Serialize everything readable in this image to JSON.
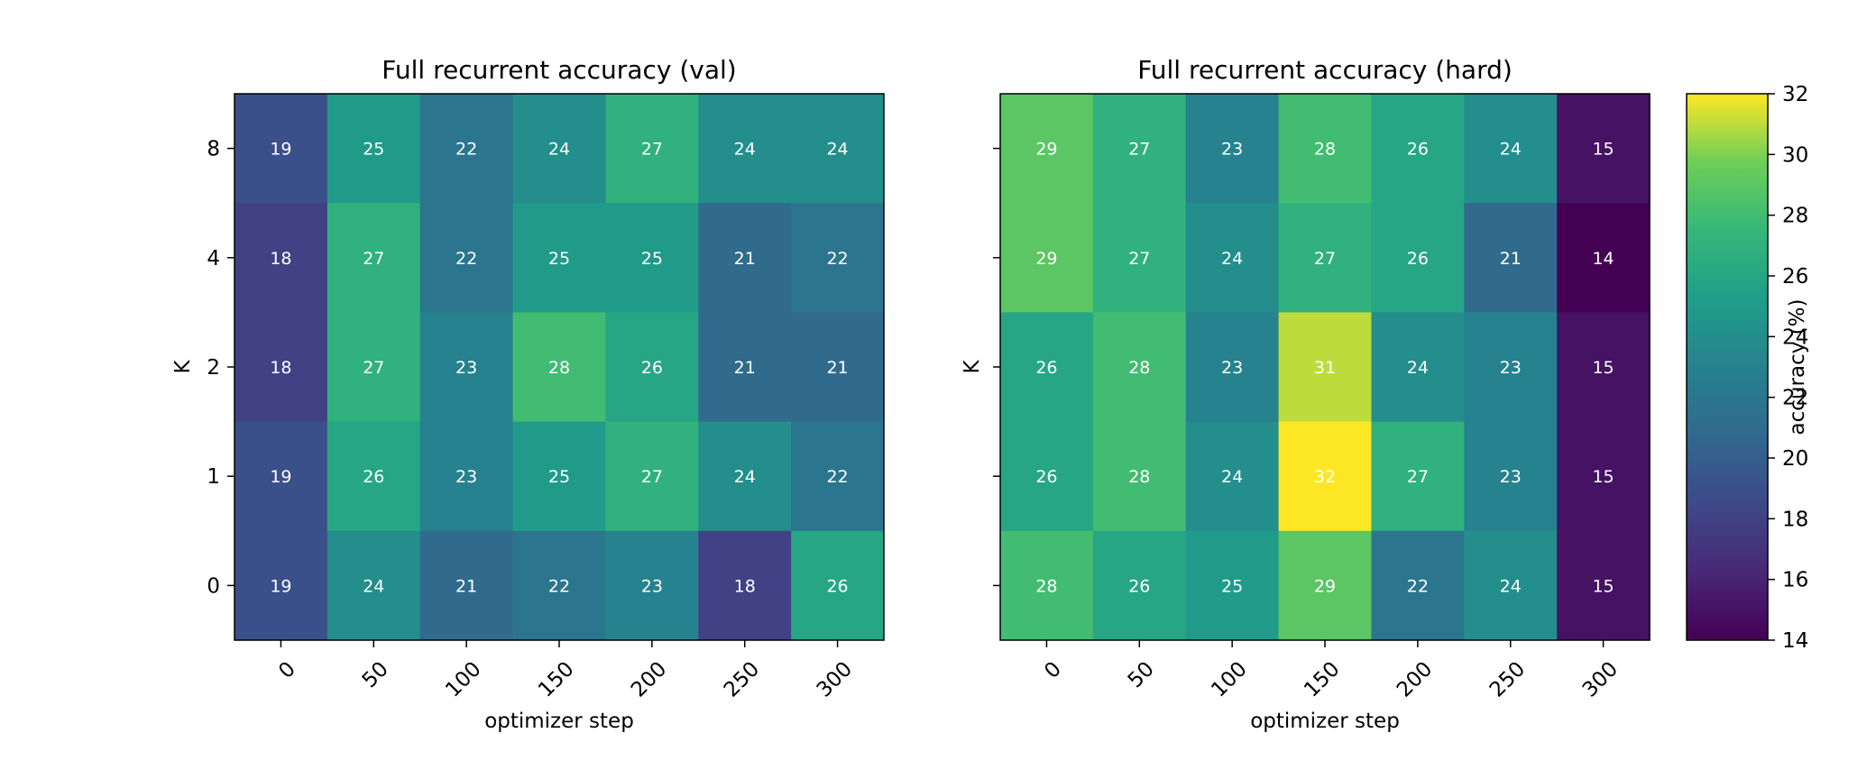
{
  "chart_data": [
    {
      "type": "heatmap",
      "title": "Full recurrent accuracy (val)",
      "xlabel": "optimizer step",
      "ylabel": "K",
      "x": [
        "0",
        "50",
        "100",
        "150",
        "200",
        "250",
        "300"
      ],
      "y": [
        "8",
        "4",
        "2",
        "1",
        "0"
      ],
      "values": [
        [
          19,
          25,
          22,
          24,
          27,
          24,
          24
        ],
        [
          18,
          27,
          22,
          25,
          25,
          21,
          22
        ],
        [
          18,
          27,
          23,
          28,
          26,
          21,
          21
        ],
        [
          19,
          26,
          23,
          25,
          27,
          24,
          22
        ],
        [
          19,
          24,
          21,
          22,
          23,
          18,
          26
        ]
      ],
      "colormap": "viridis",
      "vmin": 14,
      "vmax": 32
    },
    {
      "type": "heatmap",
      "title": "Full recurrent accuracy (hard)",
      "xlabel": "optimizer step",
      "ylabel": "K",
      "x": [
        "0",
        "50",
        "100",
        "150",
        "200",
        "250",
        "300"
      ],
      "y": [
        "8",
        "4",
        "2",
        "1",
        "0"
      ],
      "values": [
        [
          29,
          27,
          23,
          28,
          26,
          24,
          15
        ],
        [
          29,
          27,
          24,
          27,
          26,
          21,
          14
        ],
        [
          26,
          28,
          23,
          31,
          24,
          23,
          15
        ],
        [
          26,
          28,
          24,
          32,
          27,
          23,
          15
        ],
        [
          28,
          26,
          25,
          29,
          22,
          24,
          15
        ]
      ],
      "colormap": "viridis",
      "vmin": 14,
      "vmax": 32
    }
  ],
  "colorbar": {
    "label": "accuracy (%)",
    "ticks": [
      "14",
      "16",
      "18",
      "20",
      "22",
      "24",
      "26",
      "28",
      "30",
      "32"
    ],
    "min": 14,
    "max": 32
  }
}
